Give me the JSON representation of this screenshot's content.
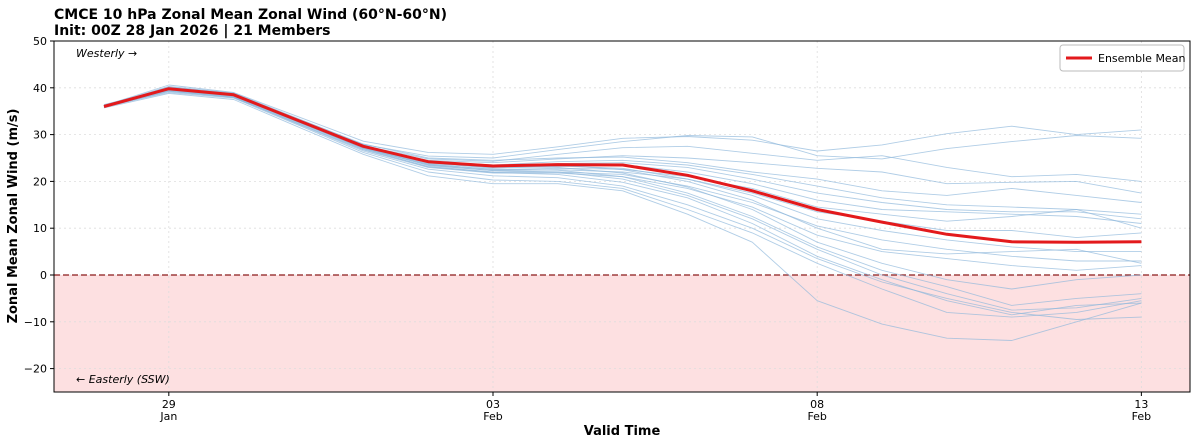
{
  "chart_data": {
    "type": "line",
    "title": "CMCE 10 hPa Zonal Mean Zonal Wind (60°N-60°N)",
    "subtitle": "Init: 00Z 28 Jan 2026 | 21 Members",
    "x_label": "Valid Time",
    "y_label": "Zonal Mean Zonal Wind (m/s)",
    "annotations": [
      "Westerly →",
      "← Easterly (SSW)"
    ],
    "x": [
      "2026-01-28T00:00Z",
      "2026-01-29T00:00Z",
      "2026-01-30T00:00Z",
      "2026-01-31T00:00Z",
      "2026-02-01T00:00Z",
      "2026-02-02T00:00Z",
      "2026-02-03T00:00Z",
      "2026-02-04T00:00Z",
      "2026-02-05T00:00Z",
      "2026-02-06T00:00Z",
      "2026-02-07T00:00Z",
      "2026-02-08T00:00Z",
      "2026-02-09T00:00Z",
      "2026-02-10T00:00Z",
      "2026-02-11T00:00Z",
      "2026-02-12T00:00Z",
      "2026-02-13T00:00Z"
    ],
    "series": [
      {
        "name": "Ensemble Mean",
        "color": "#e31a1c",
        "values": [
          36,
          39.8,
          38.5,
          33,
          27.5,
          24.2,
          23.3,
          23.6,
          23.5,
          21.3,
          18,
          14,
          11.3,
          8.7,
          7.1,
          7.0,
          7.1
        ]
      }
    ],
    "members": {
      "color": "#8fb8dc",
      "values": [
        [
          36.2,
          40.6,
          39.0,
          33.8,
          28.6,
          26.2,
          25.8,
          27.4,
          29.2,
          29.6,
          28.8,
          26.5,
          27.8,
          30.2,
          31.8,
          30.0,
          31.0
        ],
        [
          36.0,
          40.1,
          38.6,
          33.2,
          27.9,
          25.4,
          25.0,
          26.8,
          28.5,
          29.8,
          29.5,
          25.5,
          24.8,
          27.0,
          28.5,
          29.8,
          29.2
        ],
        [
          36.4,
          39.8,
          38.3,
          32.9,
          27.6,
          24.8,
          24.3,
          25.8,
          27.2,
          27.5,
          26.0,
          24.5,
          25.5,
          23.0,
          21.0,
          21.5,
          20.0
        ],
        [
          36.1,
          39.5,
          38.2,
          32.7,
          27.3,
          24.5,
          24.0,
          24.8,
          25.5,
          25.0,
          24.0,
          22.8,
          22.0,
          19.5,
          19.8,
          20.0,
          17.5
        ],
        [
          36.0,
          40.2,
          38.9,
          33.4,
          28.0,
          25.0,
          24.5,
          25.0,
          25.2,
          24.0,
          22.0,
          20.5,
          18.0,
          17.0,
          18.5,
          17.0,
          15.5
        ],
        [
          36.3,
          39.9,
          38.6,
          33.0,
          27.5,
          24.3,
          23.5,
          24.2,
          24.5,
          23.5,
          21.5,
          19.0,
          16.5,
          15.0,
          14.5,
          14.0,
          13.0
        ],
        [
          35.9,
          39.6,
          38.4,
          32.8,
          27.2,
          23.8,
          23.0,
          23.8,
          24.0,
          23.0,
          20.5,
          17.5,
          15.5,
          14.0,
          13.5,
          13.5,
          12.0
        ],
        [
          36.2,
          40.0,
          38.7,
          33.1,
          27.4,
          24.0,
          22.8,
          23.2,
          23.6,
          22.0,
          19.5,
          16.0,
          14.0,
          13.5,
          13.0,
          12.5,
          11.0
        ],
        [
          36.0,
          39.7,
          38.5,
          33.0,
          27.2,
          23.7,
          22.5,
          22.8,
          22.6,
          21.0,
          18.5,
          14.5,
          13.0,
          11.5,
          12.5,
          14.0,
          10.0
        ],
        [
          36.3,
          39.4,
          38.1,
          32.6,
          27.0,
          23.5,
          22.3,
          22.5,
          22.0,
          20.5,
          17.5,
          13.5,
          11.5,
          9.5,
          9.5,
          8.0,
          9.0
        ],
        [
          36.1,
          39.8,
          38.4,
          33.0,
          27.6,
          24.0,
          23.0,
          23.3,
          22.8,
          20.5,
          17.0,
          12.0,
          9.5,
          7.5,
          6.0,
          5.0,
          5.0
        ],
        [
          36.0,
          39.3,
          38.0,
          32.4,
          26.8,
          23.2,
          22.0,
          22.0,
          21.5,
          19.0,
          15.5,
          10.5,
          7.5,
          5.5,
          4.0,
          3.0,
          3.0
        ],
        [
          36.2,
          40.3,
          38.8,
          33.3,
          27.8,
          24.2,
          23.5,
          23.5,
          22.5,
          20.0,
          16.0,
          10.0,
          5.5,
          4.5,
          5.0,
          5.5,
          2.5
        ],
        [
          35.8,
          39.2,
          37.9,
          32.3,
          26.7,
          23.0,
          21.8,
          21.8,
          21.0,
          18.5,
          14.5,
          8.5,
          5.0,
          3.5,
          2.0,
          1.0,
          2.0
        ],
        [
          36.1,
          39.9,
          38.5,
          32.9,
          27.4,
          24.0,
          23.2,
          23.0,
          21.8,
          18.8,
          14.0,
          7.0,
          2.5,
          -1.0,
          -3.0,
          -1.0,
          0.0
        ],
        [
          35.9,
          39.5,
          38.2,
          32.6,
          27.1,
          23.6,
          22.6,
          22.4,
          21.0,
          17.5,
          12.5,
          6.0,
          1.0,
          -2.5,
          -6.5,
          -5.0,
          -4.0
        ],
        [
          36.0,
          39.6,
          38.3,
          32.8,
          27.2,
          23.4,
          22.3,
          22.0,
          20.5,
          17.0,
          12.0,
          5.5,
          0.0,
          -4.0,
          -7.5,
          -7.0,
          -5.0
        ],
        [
          36.2,
          39.7,
          38.4,
          32.7,
          27.0,
          23.1,
          21.9,
          21.5,
          19.8,
          16.5,
          11.0,
          4.0,
          -1.0,
          -5.5,
          -8.5,
          -6.5,
          -6.0
        ],
        [
          35.8,
          39.3,
          38.0,
          32.2,
          26.5,
          22.6,
          21.2,
          20.8,
          19.0,
          15.0,
          10.0,
          3.5,
          -1.5,
          -5.0,
          -8.0,
          -9.5,
          -9.0
        ],
        [
          36.0,
          39.0,
          37.8,
          32.0,
          26.2,
          22.0,
          20.3,
          20.0,
          18.5,
          14.0,
          9.0,
          2.5,
          -3.0,
          -8.0,
          -9.0,
          -8.0,
          -5.5
        ],
        [
          35.7,
          38.8,
          37.5,
          31.6,
          25.8,
          21.2,
          19.5,
          19.5,
          18.0,
          13.0,
          7.0,
          -5.5,
          -10.5,
          -13.5,
          -14.0,
          -10.0,
          -6.0
        ]
      ]
    },
    "xlim": [
      "2026-01-27T05:30Z",
      "2026-02-13T18:00Z"
    ],
    "xticks": [
      {
        "value": "2026-01-29T00:00Z",
        "label": "29\nJan"
      },
      {
        "value": "2026-02-03T00:00Z",
        "label": "03\nFeb"
      },
      {
        "value": "2026-02-08T00:00Z",
        "label": "08\nFeb"
      },
      {
        "value": "2026-02-13T00:00Z",
        "label": "13\nFeb"
      }
    ],
    "ylim": [
      -25,
      50
    ],
    "yticks": [
      {
        "value": -20,
        "label": "−20"
      },
      {
        "value": -10,
        "label": "−10"
      },
      0,
      10,
      20,
      30,
      40,
      50
    ],
    "grid": true,
    "zero_line": true,
    "easterly_shading": "#fde0e1",
    "legend": "upper right"
  }
}
